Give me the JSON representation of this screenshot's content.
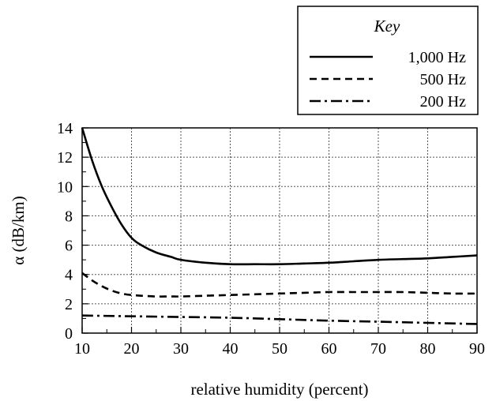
{
  "chart_data": {
    "type": "line",
    "title": "",
    "xlabel": "relative humidity (percent)",
    "ylabel": "α (dB/km)",
    "xlim": [
      10,
      90
    ],
    "ylim": [
      0,
      14
    ],
    "xticks": [
      10,
      20,
      30,
      40,
      50,
      60,
      70,
      80,
      90
    ],
    "yticks": [
      0,
      2,
      4,
      6,
      8,
      10,
      12,
      14
    ],
    "grid": true,
    "legend": {
      "title": "Key",
      "placement": "top-right, above plot"
    },
    "series": [
      {
        "name": "1,000 Hz",
        "style": "solid",
        "x": [
          10,
          12,
          14,
          16,
          18,
          20,
          22,
          25,
          28,
          30,
          35,
          40,
          45,
          50,
          55,
          60,
          65,
          70,
          75,
          80,
          85,
          90
        ],
        "y": [
          14.0,
          11.8,
          10.0,
          8.6,
          7.4,
          6.5,
          6.0,
          5.5,
          5.2,
          5.0,
          4.8,
          4.7,
          4.7,
          4.7,
          4.75,
          4.8,
          4.9,
          5.0,
          5.05,
          5.1,
          5.2,
          5.3
        ]
      },
      {
        "name": "500 Hz",
        "style": "dashed",
        "x": [
          10,
          12,
          14,
          16,
          18,
          20,
          22,
          25,
          28,
          30,
          35,
          40,
          45,
          50,
          55,
          60,
          65,
          70,
          75,
          80,
          85,
          90
        ],
        "y": [
          4.1,
          3.6,
          3.2,
          2.9,
          2.7,
          2.6,
          2.55,
          2.5,
          2.5,
          2.5,
          2.55,
          2.6,
          2.65,
          2.7,
          2.75,
          2.8,
          2.8,
          2.8,
          2.8,
          2.75,
          2.7,
          2.7
        ]
      },
      {
        "name": "200 Hz",
        "style": "dashdot",
        "x": [
          10,
          20,
          30,
          40,
          50,
          60,
          70,
          80,
          90
        ],
        "y": [
          1.2,
          1.15,
          1.1,
          1.05,
          0.95,
          0.85,
          0.78,
          0.7,
          0.62
        ]
      }
    ]
  }
}
